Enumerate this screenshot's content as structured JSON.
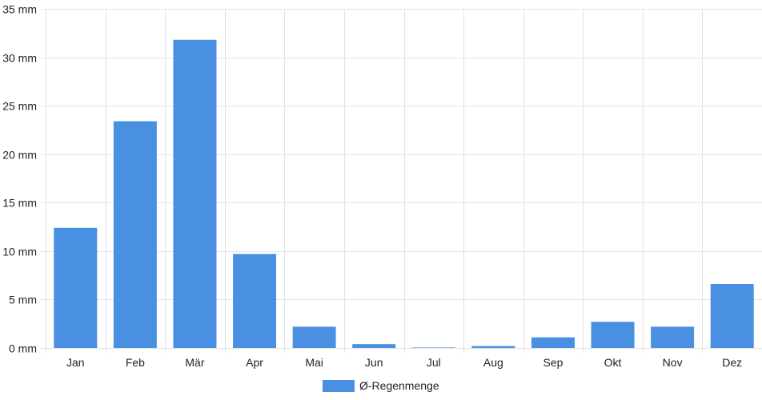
{
  "chart_data": {
    "type": "bar",
    "title": "",
    "xlabel": "",
    "ylabel": "",
    "categories": [
      "Jan",
      "Feb",
      "Mär",
      "Apr",
      "Mai",
      "Jun",
      "Jul",
      "Aug",
      "Sep",
      "Okt",
      "Nov",
      "Dez"
    ],
    "series": [
      {
        "name": "Ø-Regenmenge",
        "color": "#4a90e2",
        "values": [
          12.4,
          23.4,
          31.8,
          9.7,
          2.2,
          0.4,
          0.05,
          0.2,
          1.1,
          2.7,
          2.2,
          6.6
        ]
      }
    ],
    "ylim": [
      0,
      35
    ],
    "yticks": [
      0,
      5,
      10,
      15,
      20,
      25,
      30,
      35
    ],
    "ytick_unit": "mm",
    "grid": true,
    "legend_position": "bottom-center"
  }
}
